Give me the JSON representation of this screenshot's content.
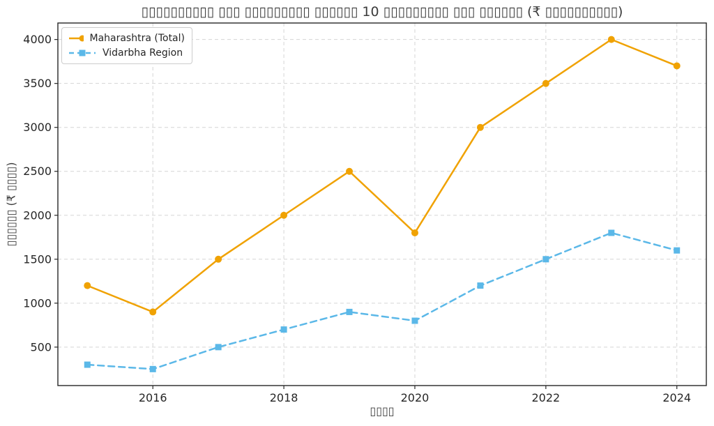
{
  "chart_data": {
    "type": "line",
    "title": "▯▯▯▯▯▯▯▯▯▯ ▯▯▯ ▯▯▯▯▯▯▯▯▯ ▯▯▯▯▯▯ 10 ▯▯▯▯▯▯▯▯▯ ▯▯▯ ▯▯▯▯▯▯ (₹ ▯▯▯▯▯▯▯▯▯▯)",
    "xlabel": "▯▯▯▯",
    "ylabel": "▯▯▯▯▯▯ (₹ ▯▯▯▯)",
    "x": [
      2015,
      2016,
      2017,
      2018,
      2019,
      2020,
      2021,
      2022,
      2023,
      2024
    ],
    "series": [
      {
        "name": "Maharashtra (Total)",
        "values": [
          1200,
          900,
          1500,
          2000,
          2500,
          1800,
          3000,
          3500,
          4000,
          3700
        ],
        "color": "#F0A202",
        "marker": "circle",
        "line_style": "solid"
      },
      {
        "name": "Vidarbha Region",
        "values": [
          300,
          250,
          500,
          700,
          900,
          800,
          1200,
          1500,
          1800,
          1600
        ],
        "color": "#5BB8E8",
        "marker": "square",
        "line_style": "dashed"
      }
    ],
    "xticks": [
      2016,
      2018,
      2020,
      2022,
      2024
    ],
    "yticks": [
      500,
      1000,
      1500,
      2000,
      2500,
      3000,
      3500,
      4000
    ],
    "xlim": [
      2014.55,
      2024.45
    ],
    "ylim": [
      62.5,
      4187.5
    ],
    "grid": true,
    "legend_position": "upper left",
    "currency_symbol": "₹"
  }
}
